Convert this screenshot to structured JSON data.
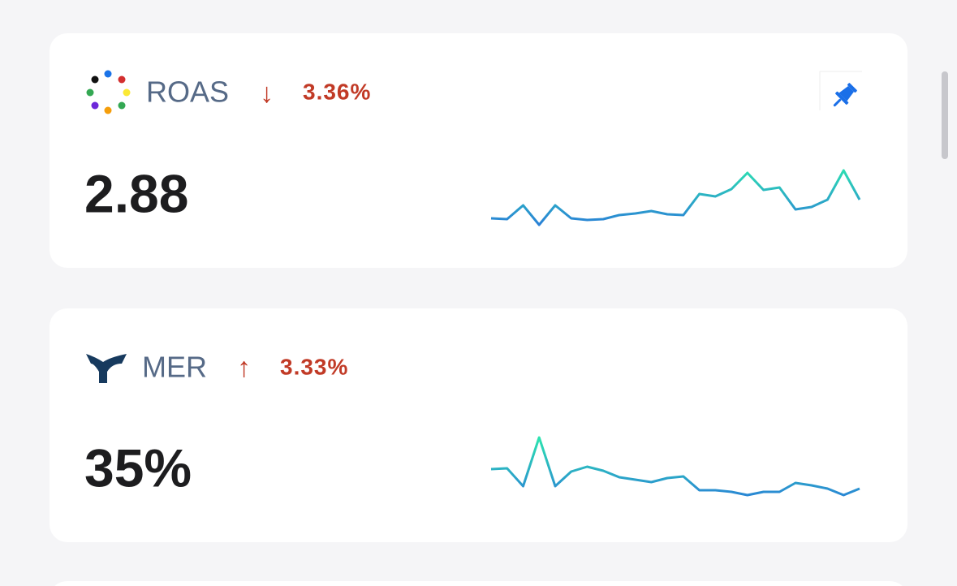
{
  "cards": [
    {
      "name": "ROAS",
      "arrow": "↓",
      "change": "3.36%",
      "value": "2.88",
      "sparkline": [
        12,
        11,
        28,
        4,
        28,
        12,
        10,
        11,
        16,
        18,
        21,
        17,
        16,
        42,
        39,
        48,
        68,
        47,
        50,
        23,
        26,
        35,
        71,
        35
      ]
    },
    {
      "name": "MER",
      "arrow": "↑",
      "change": "3.33%",
      "value": "35%",
      "sparkline": [
        42,
        43,
        21,
        81,
        21,
        39,
        45,
        40,
        32,
        29,
        26,
        31,
        33,
        16,
        16,
        14,
        10,
        14,
        14,
        25,
        22,
        18,
        10,
        18
      ]
    }
  ]
}
